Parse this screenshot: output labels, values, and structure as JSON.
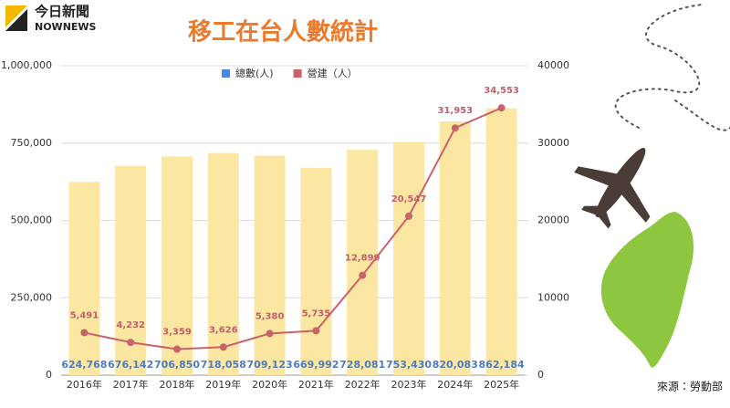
{
  "logo_text": "今日新聞",
  "logo_sub": "NOWNEWS",
  "chart_data": {
    "type": "combo",
    "title": "移工在台人數統計",
    "source": "來源：勞動部",
    "categories": [
      "2016年",
      "2017年",
      "2018年",
      "2019年",
      "2020年",
      "2021年",
      "2022年",
      "2023年",
      "2024年",
      "2025年"
    ],
    "series": [
      {
        "name": "總數(人)",
        "type": "bar",
        "color": "#fbe6a2",
        "legend_color": "#4a86e8",
        "values": [
          624768,
          676142,
          706850,
          718058,
          709123,
          669992,
          728081,
          753430,
          820083,
          862184
        ],
        "value_labels": [
          "624,768",
          "676,142",
          "706,850",
          "718,058",
          "709,123",
          "669,992",
          "728,081",
          "753,430",
          "820,083",
          "862,184"
        ]
      },
      {
        "name": "營建（人）",
        "type": "line",
        "axis": "y2",
        "color": "#c9626b",
        "values": [
          5491,
          4232,
          3359,
          3626,
          5380,
          5735,
          12899,
          20547,
          31953,
          34553
        ],
        "value_labels": [
          "5,491",
          "4,232",
          "3,359",
          "3,626",
          "5,380",
          "5,735",
          "12,899",
          "20,547",
          "31,953",
          "34,553"
        ]
      }
    ],
    "ylim": [
      0,
      1000000
    ],
    "yticks": [
      0,
      {
        "value": 250000,
        "label": "250,000"
      },
      {
        "value": 500000,
        "label": "500,000"
      },
      {
        "value": 750000,
        "label": "750,000"
      },
      {
        "value": 1000000,
        "label": "1,000,000"
      }
    ],
    "y2lim": [
      0,
      40000
    ],
    "y2ticks": [
      0,
      10000,
      20000,
      30000,
      40000
    ],
    "grid": true
  }
}
